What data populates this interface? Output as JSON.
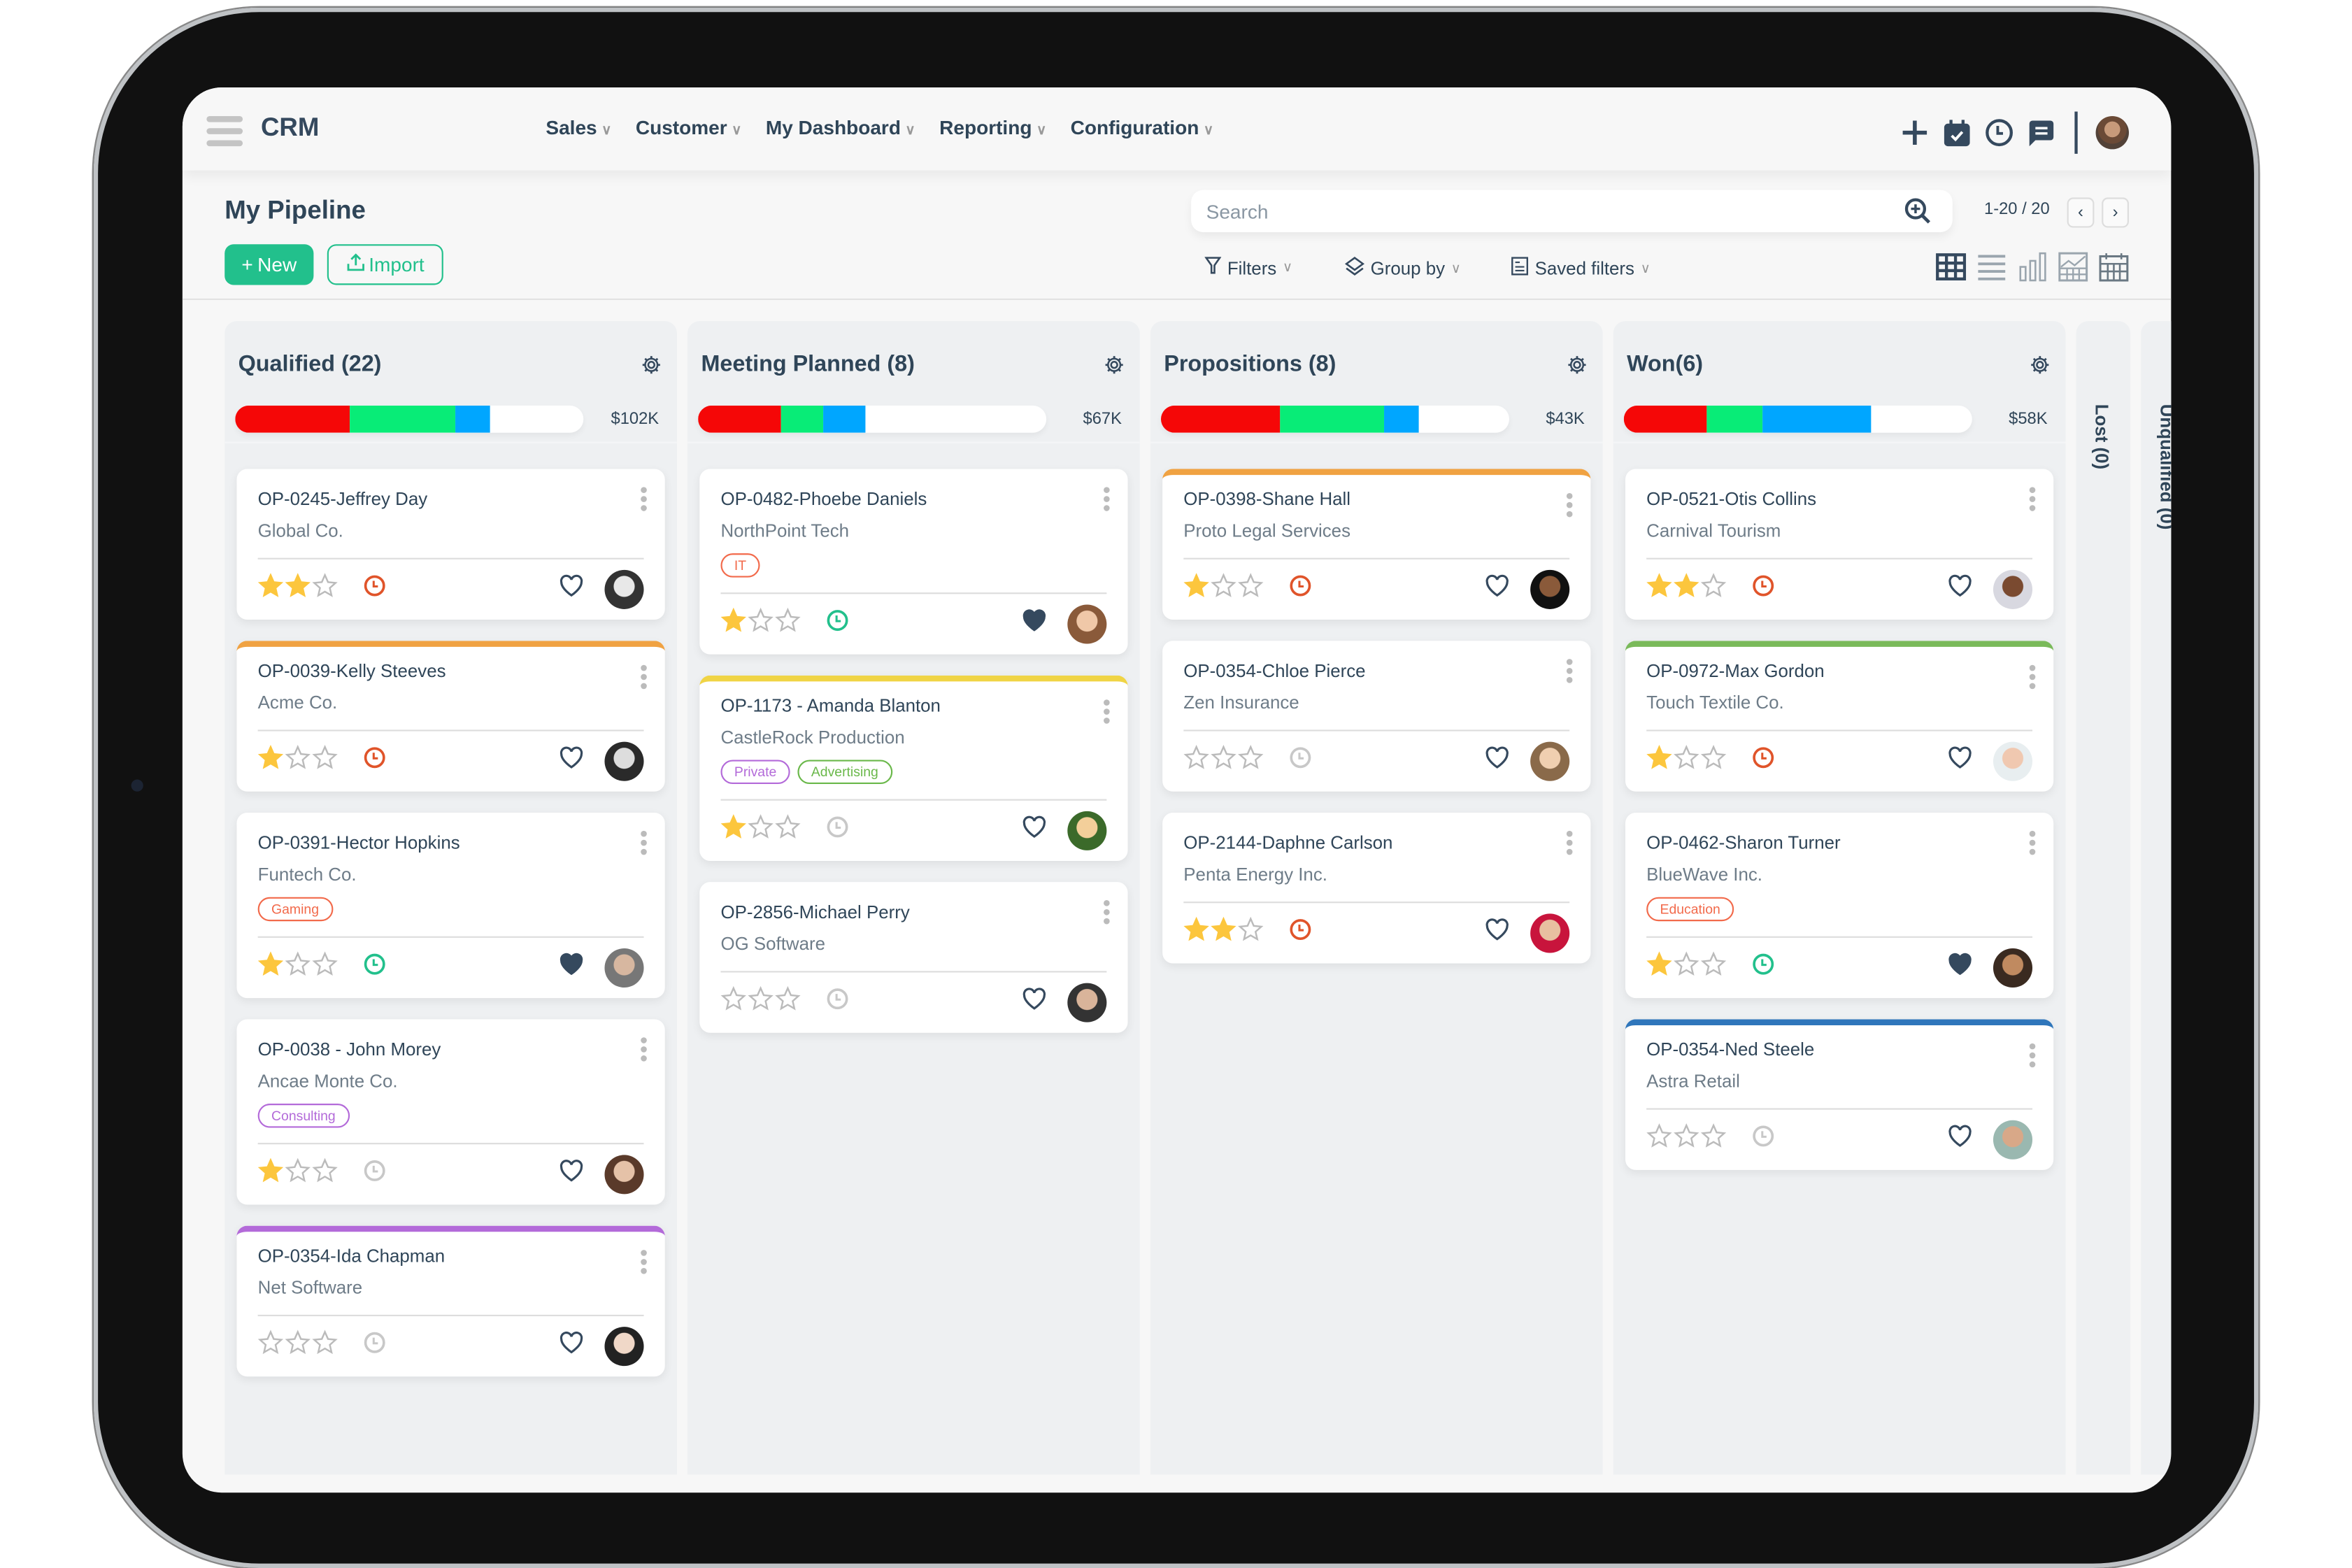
{
  "header": {
    "brand": "CRM",
    "nav": [
      {
        "label": "Sales"
      },
      {
        "label": "Customer"
      },
      {
        "label": "My Dashboard"
      },
      {
        "label": "Reporting"
      },
      {
        "label": "Configuration"
      }
    ],
    "icons": [
      "plus-icon",
      "calendar-check-icon",
      "clock-icon",
      "chat-icon",
      "user-avatar"
    ]
  },
  "page": {
    "title": "My Pipeline",
    "new_label": "New",
    "import_label": "Import",
    "search_placeholder": "Search",
    "pager": "1-20 / 20",
    "filters_label": "Filters",
    "groupby_label": "Group by",
    "saved_filters_label": "Saved filters",
    "views": [
      "kanban-icon",
      "list-icon",
      "bar-chart-icon",
      "pivot-icon",
      "calendar-icon"
    ],
    "active_view": "kanban"
  },
  "colors": {
    "accent": "#22c08c",
    "text": "#2f4558",
    "bar_red": "#f50707",
    "bar_green": "#08ec77",
    "bar_blue": "#00a6ff",
    "star": "#fcc63d",
    "clock_overdue": "#e0542a",
    "clock_ok": "#22c08c",
    "clock_none": "#c8c8c8"
  },
  "columns": [
    {
      "title": "Qualified (22)",
      "amount": "$102K",
      "bar": {
        "red": 33,
        "green": 30,
        "blue": 10
      },
      "cards": [
        {
          "title": "OP-0245-Jeffrey Day",
          "company": "Global Co.",
          "tags": [],
          "stars": 2,
          "clock": "overdue",
          "favorite": false,
          "stripe": null,
          "avatar": [
            "#e8e8e8",
            "#333"
          ]
        },
        {
          "title": "OP-0039-Kelly Steeves",
          "company": "Acme Co.",
          "tags": [],
          "stars": 1,
          "clock": "overdue",
          "favorite": false,
          "stripe": "#f0a242",
          "avatar": [
            "#ddd",
            "#2a2a2a"
          ]
        },
        {
          "title": "OP-0391-Hector Hopkins",
          "company": "Funtech Co.",
          "tags": [
            {
              "label": "Gaming",
              "color": "#f26a4b"
            }
          ],
          "stars": 1,
          "clock": "ok",
          "favorite": true,
          "stripe": null,
          "avatar": [
            "#d7b7a0",
            "#777"
          ]
        },
        {
          "title": "OP-0038 - John Morey",
          "company": "Ancae Monte Co.",
          "tags": [
            {
              "label": "Consulting",
              "color": "#b36ad9"
            }
          ],
          "stars": 1,
          "clock": "none",
          "favorite": false,
          "stripe": null,
          "avatar": [
            "#e5c2a8",
            "#5a3a2a"
          ]
        },
        {
          "title": "OP-0354-Ida Chapman",
          "company": "Net Software",
          "tags": [],
          "stars": 0,
          "clock": "none",
          "favorite": false,
          "stripe": "#b36ad9",
          "avatar": [
            "#f0d8c8",
            "#222"
          ]
        }
      ]
    },
    {
      "title": "Meeting Planned (8)",
      "amount": "$67K",
      "bar": {
        "red": 24,
        "green": 12,
        "blue": 12
      },
      "cards": [
        {
          "title": "OP-0482-Phoebe Daniels",
          "company": "NorthPoint Tech",
          "tags": [
            {
              "label": "IT",
              "color": "#f26a4b"
            }
          ],
          "stars": 1,
          "clock": "ok",
          "favorite": true,
          "stripe": null,
          "avatar": [
            "#f0c8a8",
            "#8a5a3a"
          ]
        },
        {
          "title": "OP-1173 - Amanda Blanton",
          "company": "CastleRock Production",
          "tags": [
            {
              "label": "Private",
              "color": "#b36ad9"
            },
            {
              "label": "Advertising",
              "color": "#6ab84a"
            }
          ],
          "stars": 1,
          "clock": "none",
          "favorite": false,
          "stripe": "#f0d445",
          "avatar": [
            "#f3cf9a",
            "#3b6a2a"
          ]
        },
        {
          "title": "OP-2856-Michael Perry",
          "company": "OG Software",
          "tags": [],
          "stars": 0,
          "clock": "none",
          "favorite": false,
          "stripe": null,
          "avatar": [
            "#d9b49a",
            "#333"
          ]
        }
      ]
    },
    {
      "title": "Propositions (8)",
      "amount": "$43K",
      "bar": {
        "red": 34,
        "green": 30,
        "blue": 10
      },
      "cards": [
        {
          "title": "OP-0398-Shane Hall",
          "company": "Proto Legal Services",
          "tags": [],
          "stars": 1,
          "clock": "overdue",
          "favorite": false,
          "stripe": "#f0a242",
          "avatar": [
            "#8a5a3a",
            "#111"
          ]
        },
        {
          "title": "OP-0354-Chloe Pierce",
          "company": "Zen Insurance",
          "tags": [],
          "stars": 0,
          "clock": "none",
          "favorite": false,
          "stripe": null,
          "avatar": [
            "#f0cfb0",
            "#8a6a4a"
          ]
        },
        {
          "title": "OP-2144-Daphne Carlson",
          "company": "Penta Energy Inc.",
          "tags": [],
          "stars": 2,
          "clock": "overdue",
          "favorite": false,
          "stripe": null,
          "avatar": [
            "#e8c0a0",
            "#c8143c"
          ]
        }
      ]
    },
    {
      "title": "Won(6)",
      "amount": "$58K",
      "bar": {
        "red": 24,
        "green": 16,
        "blue": 31
      },
      "cards": [
        {
          "title": "OP-0521-Otis Collins",
          "company": "Carnival Tourism",
          "tags": [],
          "stars": 2,
          "clock": "overdue",
          "favorite": false,
          "stripe": null,
          "avatar": [
            "#7a4a30",
            "#d8d8e0"
          ]
        },
        {
          "title": "OP-0972-Max Gordon",
          "company": "Touch Textile Co.",
          "tags": [],
          "stars": 1,
          "clock": "overdue",
          "favorite": false,
          "stripe": "#7aba5a",
          "avatar": [
            "#f0c8b0",
            "#e8eef0"
          ]
        },
        {
          "title": "OP-0462-Sharon Turner",
          "company": "BlueWave Inc.",
          "tags": [
            {
              "label": "Education",
              "color": "#f26a4b"
            }
          ],
          "stars": 1,
          "clock": "ok",
          "favorite": true,
          "stripe": null,
          "avatar": [
            "#c08a60",
            "#3a2a20"
          ]
        },
        {
          "title": "OP-0354-Ned Steele",
          "company": "Astra Retail",
          "tags": [],
          "stars": 0,
          "clock": "none",
          "favorite": false,
          "stripe": "#2f76bb",
          "avatar": [
            "#d8a888",
            "#9ab8b0"
          ]
        }
      ]
    }
  ],
  "folded_columns": [
    {
      "title": "Lost (0)"
    },
    {
      "title": "Unqualified (0)"
    }
  ]
}
